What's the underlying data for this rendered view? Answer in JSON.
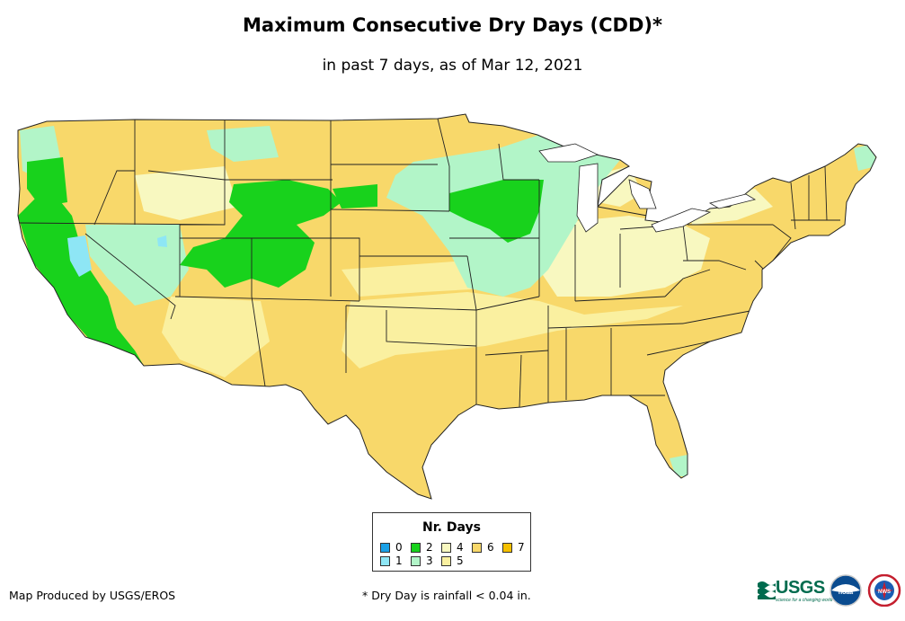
{
  "title": "Maximum Consecutive Dry Days (CDD)*",
  "subtitle": "in past 7 days, as of Mar 12, 2021",
  "legend": {
    "title": "Nr. Days",
    "items": [
      {
        "label": "0",
        "color": "#1aa0e6"
      },
      {
        "label": "1",
        "color": "#8ee6f5"
      },
      {
        "label": "2",
        "color": "#18d21c"
      },
      {
        "label": "3",
        "color": "#b2f5c8"
      },
      {
        "label": "4",
        "color": "#f8f8c0"
      },
      {
        "label": "5",
        "color": "#faf0a0"
      },
      {
        "label": "6",
        "color": "#f8d86a"
      },
      {
        "label": "7",
        "color": "#f5c000"
      }
    ]
  },
  "footer": {
    "credit": "Map Produced by USGS/EROS",
    "note": "* Dry Day is rainfall < 0.04 in."
  },
  "logos": {
    "usgs": "USGS",
    "usgs_tagline": "science for a changing world",
    "noaa": "noaa",
    "nws": "NWS"
  }
}
